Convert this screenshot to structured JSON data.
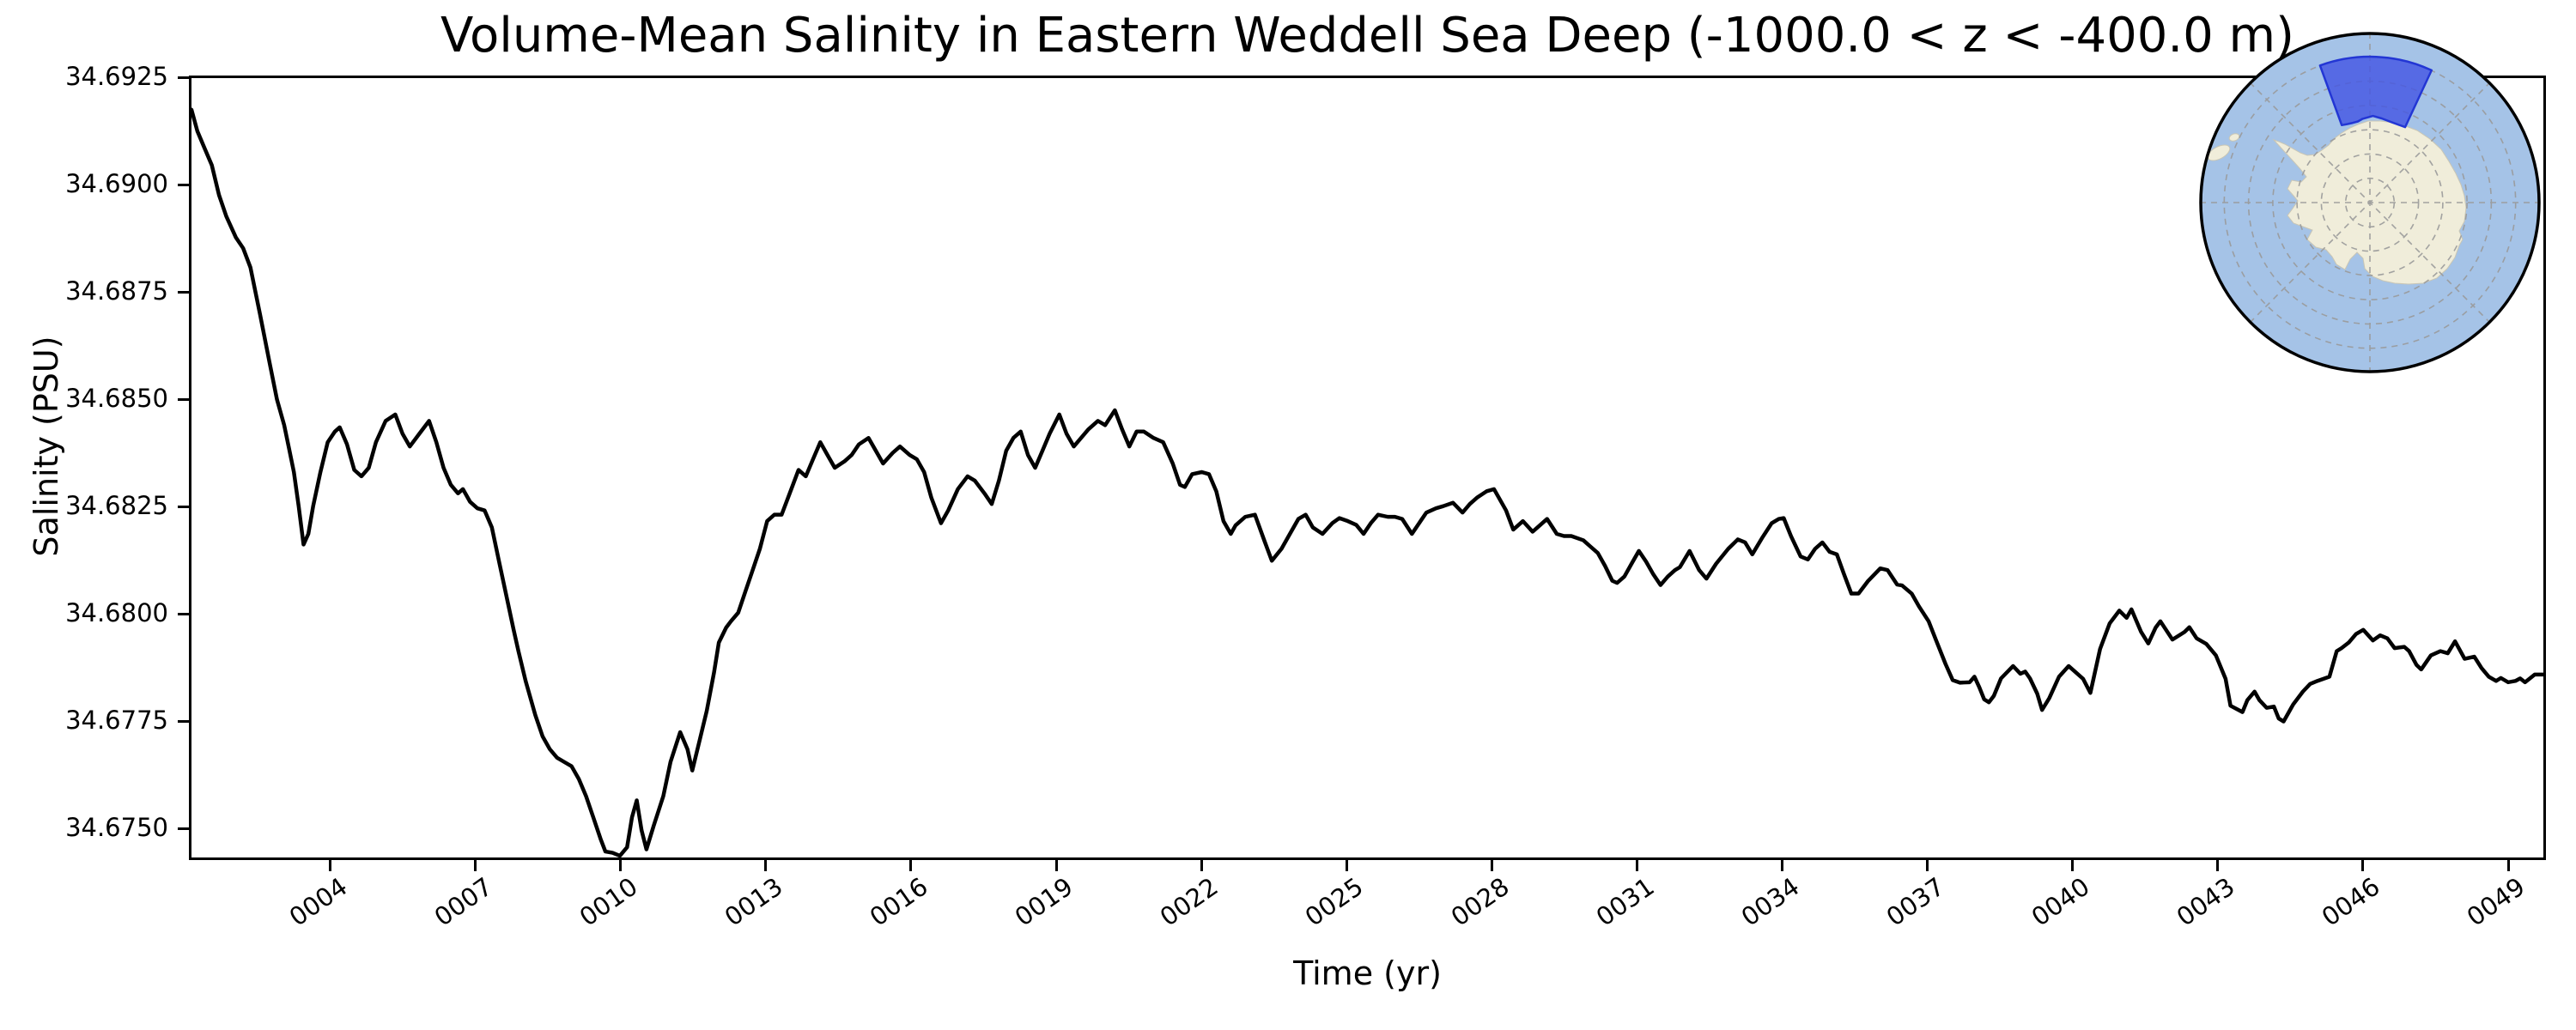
{
  "title": "Volume-Mean Salinity in Eastern Weddell Sea Deep (-1000.0 < z < -400.0 m)",
  "axes": {
    "xlabel": "Time (yr)",
    "ylabel": "Salinity (PSU)"
  },
  "colors": {
    "background": "#ffffff",
    "text": "#000000",
    "axes_edge": "#000000",
    "line": "#000000",
    "map_ocean": "#a5c3e7",
    "map_land": "#f0edda",
    "map_coast": "#c9c6b5",
    "map_grid": "#9a9a9a",
    "map_border": "#000000",
    "map_region_fill": "#4457e3",
    "map_region_edge": "#2336d4"
  },
  "chart_data": {
    "type": "line",
    "title": "Volume-Mean Salinity in Eastern Weddell Sea Deep (-1000.0 < z < -400.0 m)",
    "xlabel": "Time (yr)",
    "ylabel": "Salinity (PSU)",
    "xlim": [
      1.08,
      49.78
    ],
    "ylim": [
      34.67426,
      34.69254
    ],
    "grid": false,
    "legend": null,
    "line_color": "#000000",
    "line_width": 4.5,
    "x_ticks": [
      4,
      7,
      10,
      13,
      16,
      19,
      22,
      25,
      28,
      31,
      34,
      37,
      40,
      43,
      46,
      49
    ],
    "x_tick_labels": [
      "0004",
      "0007",
      "0010",
      "0013",
      "0016",
      "0019",
      "0022",
      "0025",
      "0028",
      "0031",
      "0034",
      "0037",
      "0040",
      "0043",
      "0046",
      "0049"
    ],
    "x_tick_rotation_deg": -35,
    "y_ticks": [
      34.675,
      34.6775,
      34.68,
      34.6825,
      34.685,
      34.6875,
      34.69,
      34.6925
    ],
    "y_tick_labels": [
      "34.6750",
      "34.6775",
      "34.6800",
      "34.6825",
      "34.6850",
      "34.6875",
      "34.6900",
      "34.6925"
    ],
    "points": [
      [
        1.08,
        34.6918
      ],
      [
        1.2,
        34.6913
      ],
      [
        1.35,
        34.6909
      ],
      [
        1.5,
        34.6905
      ],
      [
        1.65,
        34.6898
      ],
      [
        1.8,
        34.6893
      ],
      [
        2.0,
        34.6888
      ],
      [
        2.15,
        34.68855
      ],
      [
        2.3,
        34.6881
      ],
      [
        2.5,
        34.687
      ],
      [
        2.7,
        34.68585
      ],
      [
        2.85,
        34.685
      ],
      [
        3.0,
        34.6844
      ],
      [
        3.1,
        34.68385
      ],
      [
        3.2,
        34.6833
      ],
      [
        3.3,
        34.6825
      ],
      [
        3.4,
        34.6816
      ],
      [
        3.5,
        34.68185
      ],
      [
        3.6,
        34.6825
      ],
      [
        3.75,
        34.6833
      ],
      [
        3.9,
        34.684
      ],
      [
        4.05,
        34.68425
      ],
      [
        4.15,
        34.68435
      ],
      [
        4.3,
        34.68395
      ],
      [
        4.45,
        34.68335
      ],
      [
        4.6,
        34.6832
      ],
      [
        4.75,
        34.6834
      ],
      [
        4.9,
        34.684
      ],
      [
        5.1,
        34.6845
      ],
      [
        5.3,
        34.68465
      ],
      [
        5.45,
        34.6842
      ],
      [
        5.6,
        34.6839
      ],
      [
        5.8,
        34.6842
      ],
      [
        6.0,
        34.6845
      ],
      [
        6.15,
        34.684
      ],
      [
        6.3,
        34.6834
      ],
      [
        6.45,
        34.683
      ],
      [
        6.6,
        34.6828
      ],
      [
        6.7,
        34.6829
      ],
      [
        6.85,
        34.6826
      ],
      [
        7.0,
        34.68245
      ],
      [
        7.15,
        34.6824
      ],
      [
        7.3,
        34.682
      ],
      [
        7.45,
        34.6812
      ],
      [
        7.6,
        34.6804
      ],
      [
        7.75,
        34.6796
      ],
      [
        7.85,
        34.6791
      ],
      [
        8.0,
        34.6784
      ],
      [
        8.2,
        34.6776
      ],
      [
        8.35,
        34.6771
      ],
      [
        8.5,
        34.6768
      ],
      [
        8.65,
        34.6766
      ],
      [
        8.8,
        34.6765
      ],
      [
        8.95,
        34.6764
      ],
      [
        9.1,
        34.6761
      ],
      [
        9.25,
        34.6757
      ],
      [
        9.4,
        34.6752
      ],
      [
        9.55,
        34.6747
      ],
      [
        9.65,
        34.6744
      ],
      [
        9.8,
        34.67437
      ],
      [
        9.95,
        34.6743
      ],
      [
        10.1,
        34.6745
      ],
      [
        10.2,
        34.6752
      ],
      [
        10.3,
        34.6756
      ],
      [
        10.4,
        34.6749
      ],
      [
        10.5,
        34.67445
      ],
      [
        10.65,
        34.675
      ],
      [
        10.85,
        34.6757
      ],
      [
        11.0,
        34.6765
      ],
      [
        11.2,
        34.6772
      ],
      [
        11.35,
        34.6768
      ],
      [
        11.45,
        34.6763
      ],
      [
        11.6,
        34.677
      ],
      [
        11.75,
        34.6777
      ],
      [
        11.9,
        34.6786
      ],
      [
        12.0,
        34.6793
      ],
      [
        12.15,
        34.67965
      ],
      [
        12.25,
        34.6798
      ],
      [
        12.4,
        34.68
      ],
      [
        12.55,
        34.6805
      ],
      [
        12.7,
        34.681
      ],
      [
        12.85,
        34.6815
      ],
      [
        13.0,
        34.68215
      ],
      [
        13.15,
        34.6823
      ],
      [
        13.3,
        34.6823
      ],
      [
        13.5,
        34.6829
      ],
      [
        13.65,
        34.68335
      ],
      [
        13.8,
        34.6832
      ],
      [
        13.95,
        34.6836
      ],
      [
        14.1,
        34.684
      ],
      [
        14.25,
        34.6837
      ],
      [
        14.4,
        34.6834
      ],
      [
        14.6,
        34.68355
      ],
      [
        14.75,
        34.6837
      ],
      [
        14.9,
        34.68395
      ],
      [
        15.1,
        34.6841
      ],
      [
        15.25,
        34.6838
      ],
      [
        15.4,
        34.6835
      ],
      [
        15.6,
        34.68375
      ],
      [
        15.75,
        34.6839
      ],
      [
        15.95,
        34.6837
      ],
      [
        16.1,
        34.6836
      ],
      [
        16.25,
        34.6833
      ],
      [
        16.4,
        34.6827
      ],
      [
        16.6,
        34.6821
      ],
      [
        16.75,
        34.6824
      ],
      [
        16.95,
        34.6829
      ],
      [
        17.15,
        34.6832
      ],
      [
        17.3,
        34.6831
      ],
      [
        17.5,
        34.6828
      ],
      [
        17.65,
        34.68255
      ],
      [
        17.8,
        34.6831
      ],
      [
        17.95,
        34.6838
      ],
      [
        18.1,
        34.6841
      ],
      [
        18.25,
        34.68425
      ],
      [
        18.4,
        34.6837
      ],
      [
        18.55,
        34.6834
      ],
      [
        18.7,
        34.6838
      ],
      [
        18.85,
        34.6842
      ],
      [
        19.05,
        34.68465
      ],
      [
        19.2,
        34.6842
      ],
      [
        19.35,
        34.6839
      ],
      [
        19.5,
        34.6841
      ],
      [
        19.65,
        34.6843
      ],
      [
        19.85,
        34.6845
      ],
      [
        20.0,
        34.6844
      ],
      [
        20.2,
        34.68475
      ],
      [
        20.35,
        34.6843
      ],
      [
        20.5,
        34.6839
      ],
      [
        20.65,
        34.68425
      ],
      [
        20.8,
        34.68425
      ],
      [
        21.0,
        34.6841
      ],
      [
        21.2,
        34.684
      ],
      [
        21.4,
        34.6835
      ],
      [
        21.55,
        34.683
      ],
      [
        21.65,
        34.68295
      ],
      [
        21.8,
        34.68325
      ],
      [
        22.0,
        34.6833
      ],
      [
        22.15,
        34.68325
      ],
      [
        22.3,
        34.68285
      ],
      [
        22.45,
        34.68215
      ],
      [
        22.6,
        34.68185
      ],
      [
        22.7,
        34.68205
      ],
      [
        22.9,
        34.68225
      ],
      [
        23.1,
        34.6823
      ],
      [
        23.3,
        34.68168
      ],
      [
        23.45,
        34.68122
      ],
      [
        23.65,
        34.6815
      ],
      [
        23.8,
        34.6818
      ],
      [
        24.0,
        34.6822
      ],
      [
        24.15,
        34.6823
      ],
      [
        24.3,
        34.682
      ],
      [
        24.5,
        34.68185
      ],
      [
        24.7,
        34.6821
      ],
      [
        24.85,
        34.68222
      ],
      [
        25.0,
        34.68216
      ],
      [
        25.2,
        34.68206
      ],
      [
        25.35,
        34.68185
      ],
      [
        25.5,
        34.6821
      ],
      [
        25.65,
        34.6823
      ],
      [
        25.85,
        34.68225
      ],
      [
        26.0,
        34.68225
      ],
      [
        26.15,
        34.6822
      ],
      [
        26.35,
        34.68185
      ],
      [
        26.5,
        34.6821
      ],
      [
        26.65,
        34.68235
      ],
      [
        26.85,
        34.68245
      ],
      [
        27.0,
        34.6825
      ],
      [
        27.2,
        34.68258
      ],
      [
        27.4,
        34.68235
      ],
      [
        27.55,
        34.68255
      ],
      [
        27.7,
        34.6827
      ],
      [
        27.9,
        34.68285
      ],
      [
        28.05,
        34.6829
      ],
      [
        28.3,
        34.6824
      ],
      [
        28.45,
        34.68195
      ],
      [
        28.65,
        34.68215
      ],
      [
        28.85,
        34.6819
      ],
      [
        29.0,
        34.68205
      ],
      [
        29.15,
        34.6822
      ],
      [
        29.35,
        34.68185
      ],
      [
        29.5,
        34.6818
      ],
      [
        29.65,
        34.6818
      ],
      [
        29.9,
        34.6817
      ],
      [
        30.05,
        34.68155
      ],
      [
        30.2,
        34.6814
      ],
      [
        30.35,
        34.6811
      ],
      [
        30.5,
        34.68075
      ],
      [
        30.6,
        34.6807
      ],
      [
        30.75,
        34.68085
      ],
      [
        30.9,
        34.68115
      ],
      [
        31.05,
        34.68145
      ],
      [
        31.2,
        34.6812
      ],
      [
        31.35,
        34.6809
      ],
      [
        31.5,
        34.68065
      ],
      [
        31.65,
        34.68085
      ],
      [
        31.8,
        34.681
      ],
      [
        31.9,
        34.68107
      ],
      [
        32.1,
        34.68145
      ],
      [
        32.3,
        34.681
      ],
      [
        32.45,
        34.6808
      ],
      [
        32.65,
        34.68115
      ],
      [
        32.9,
        34.6815
      ],
      [
        33.1,
        34.68172
      ],
      [
        33.25,
        34.68165
      ],
      [
        33.4,
        34.68137
      ],
      [
        33.6,
        34.68175
      ],
      [
        33.8,
        34.6821
      ],
      [
        33.95,
        34.6822
      ],
      [
        34.05,
        34.68222
      ],
      [
        34.2,
        34.6818
      ],
      [
        34.4,
        34.68132
      ],
      [
        34.55,
        34.68125
      ],
      [
        34.7,
        34.6815
      ],
      [
        34.85,
        34.68165
      ],
      [
        35.0,
        34.68143
      ],
      [
        35.15,
        34.68137
      ],
      [
        35.3,
        34.6809
      ],
      [
        35.45,
        34.68045
      ],
      [
        35.6,
        34.68045
      ],
      [
        35.8,
        34.68075
      ],
      [
        36.05,
        34.68104
      ],
      [
        36.2,
        34.681
      ],
      [
        36.4,
        34.68066
      ],
      [
        36.5,
        34.68064
      ],
      [
        36.7,
        34.68045
      ],
      [
        36.85,
        34.68015
      ],
      [
        37.05,
        34.6798
      ],
      [
        37.2,
        34.67937
      ],
      [
        37.4,
        34.6788
      ],
      [
        37.55,
        34.67842
      ],
      [
        37.7,
        34.67836
      ],
      [
        37.9,
        34.67837
      ],
      [
        38.0,
        34.6785
      ],
      [
        38.1,
        34.67825
      ],
      [
        38.2,
        34.67797
      ],
      [
        38.3,
        34.6779
      ],
      [
        38.4,
        34.67805
      ],
      [
        38.55,
        34.67846
      ],
      [
        38.8,
        34.67875
      ],
      [
        38.95,
        34.67857
      ],
      [
        39.05,
        34.67862
      ],
      [
        39.15,
        34.67846
      ],
      [
        39.3,
        34.6781
      ],
      [
        39.4,
        34.67772
      ],
      [
        39.55,
        34.678
      ],
      [
        39.75,
        34.6785
      ],
      [
        39.95,
        34.67875
      ],
      [
        40.1,
        34.6786
      ],
      [
        40.25,
        34.67845
      ],
      [
        40.4,
        34.67812
      ],
      [
        40.6,
        34.67915
      ],
      [
        40.8,
        34.67975
      ],
      [
        41.0,
        34.68005
      ],
      [
        41.15,
        34.67988
      ],
      [
        41.25,
        34.68008
      ],
      [
        41.45,
        34.67955
      ],
      [
        41.6,
        34.67928
      ],
      [
        41.75,
        34.67965
      ],
      [
        41.85,
        34.6798
      ],
      [
        42.1,
        34.67937
      ],
      [
        42.35,
        34.67955
      ],
      [
        42.45,
        34.67966
      ],
      [
        42.6,
        34.6794
      ],
      [
        42.8,
        34.67927
      ],
      [
        43.0,
        34.679
      ],
      [
        43.2,
        34.67845
      ],
      [
        43.3,
        34.67782
      ],
      [
        43.45,
        34.67773
      ],
      [
        43.55,
        34.67767
      ],
      [
        43.65,
        34.67795
      ],
      [
        43.8,
        34.67815
      ],
      [
        43.9,
        34.67795
      ],
      [
        44.05,
        34.67777
      ],
      [
        44.2,
        34.6778
      ],
      [
        44.3,
        34.67752
      ],
      [
        44.4,
        34.67745
      ],
      [
        44.6,
        34.67785
      ],
      [
        44.8,
        34.67815
      ],
      [
        44.95,
        34.67833
      ],
      [
        45.1,
        34.6784
      ],
      [
        45.25,
        34.67846
      ],
      [
        45.35,
        34.6785
      ],
      [
        45.5,
        34.6791
      ],
      [
        45.6,
        34.67917
      ],
      [
        45.75,
        34.6793
      ],
      [
        45.9,
        34.6795
      ],
      [
        46.05,
        34.6796
      ],
      [
        46.25,
        34.67935
      ],
      [
        46.4,
        34.67947
      ],
      [
        46.55,
        34.6794
      ],
      [
        46.7,
        34.67917
      ],
      [
        46.9,
        34.6792
      ],
      [
        47.0,
        34.6791
      ],
      [
        47.15,
        34.67878
      ],
      [
        47.25,
        34.67867
      ],
      [
        47.45,
        34.679
      ],
      [
        47.65,
        34.6791
      ],
      [
        47.8,
        34.67905
      ],
      [
        47.95,
        34.67933
      ],
      [
        48.15,
        34.67892
      ],
      [
        48.35,
        34.67897
      ],
      [
        48.5,
        34.6787
      ],
      [
        48.65,
        34.6785
      ],
      [
        48.8,
        34.6784
      ],
      [
        48.9,
        34.67847
      ],
      [
        49.05,
        34.67837
      ],
      [
        49.2,
        34.6784
      ],
      [
        49.3,
        34.67846
      ],
      [
        49.4,
        34.67837
      ],
      [
        49.6,
        34.67855
      ],
      [
        49.78,
        34.67855
      ]
    ],
    "inset_map": {
      "type": "south-polar-stereographic",
      "highlighted_region": "Eastern Weddell Sea sector"
    }
  }
}
